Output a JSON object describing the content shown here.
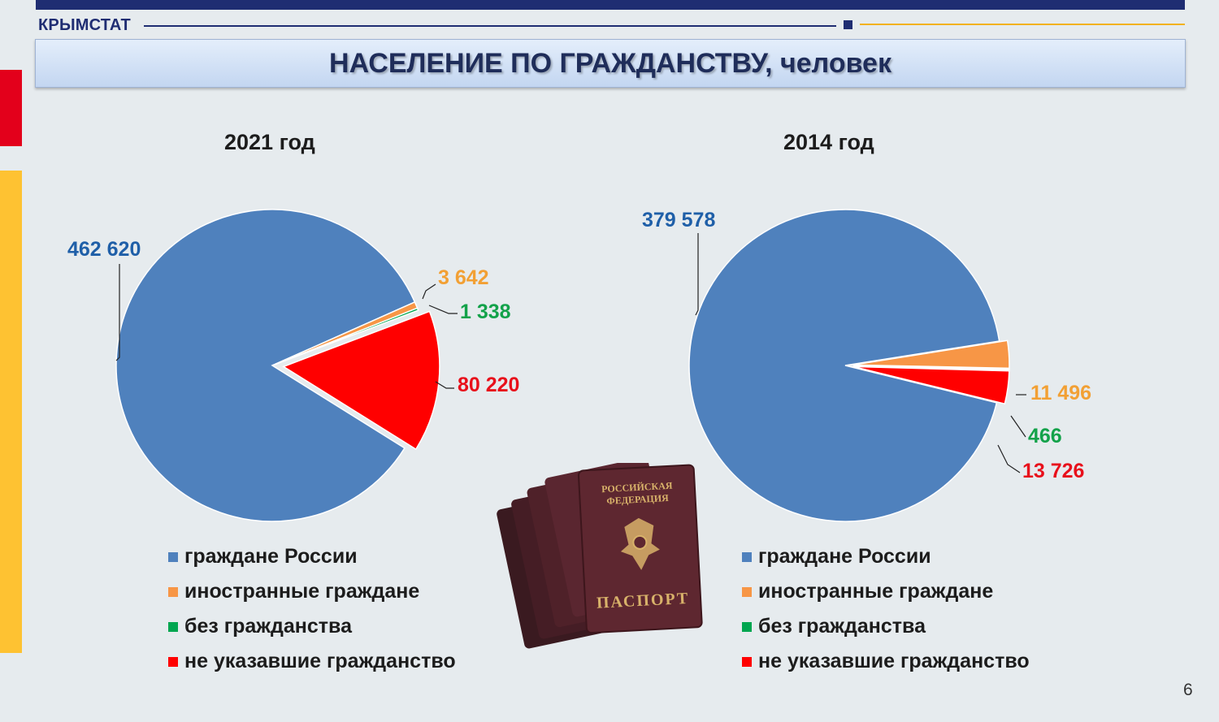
{
  "header": {
    "brand": "КРЫМСТАТ",
    "title": "НАСЕЛЕНИЕ ПО ГРАЖДАНСТВУ, человек"
  },
  "page_number": "6",
  "colors": {
    "russia": "#4f81bd",
    "foreign": "#f79646",
    "stateless": "#00a650",
    "unspecified": "#ff0000",
    "russia_label": "#1f5fa8",
    "foreign_label": "#f2a034",
    "stateless_label": "#13a24a",
    "unspecified_label": "#e8101b"
  },
  "passport": {
    "cover_text_1": "РОССИЙСКАЯ",
    "cover_text_2": "ФЕДЕРАЦИЯ",
    "cover_text_3": "ПАСПОРТ"
  },
  "chart_data": [
    {
      "type": "pie",
      "title": "2021 год",
      "categories": [
        "граждане России",
        "иностранные граждане",
        "без гражданства",
        "не указавшие гражданство"
      ],
      "values": [
        462620,
        3642,
        1338,
        80220
      ],
      "labels": [
        "462 620",
        "3 642",
        "1 338",
        "80 220"
      ],
      "exploded": "не указавшие гражданство",
      "legend": "bottom"
    },
    {
      "type": "pie",
      "title": "2014 год",
      "categories": [
        "граждане России",
        "иностранные граждане",
        "без гражданства",
        "не указавшие гражданство"
      ],
      "values": [
        379578,
        11496,
        466,
        13726
      ],
      "labels": [
        "379 578",
        "11 496",
        "466",
        "13 726"
      ],
      "exploded": "иностранные граждане, без гражданства, не указавшие гражданство",
      "legend": "bottom"
    }
  ]
}
